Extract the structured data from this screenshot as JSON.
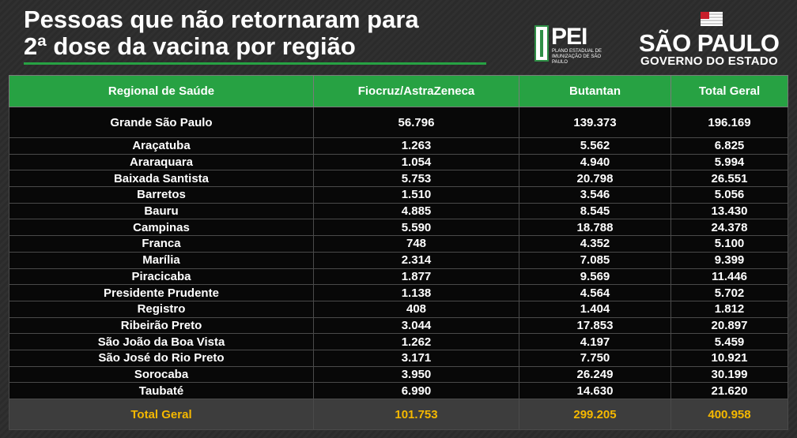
{
  "title": {
    "line1": "Pessoas que não retornaram para",
    "line2": "2ª dose da vacina por região"
  },
  "logos": {
    "pei": {
      "name": "PEI",
      "subtitle": "PLANO ESTADUAL DE IMUNIZAÇÃO DE SÃO PAULO"
    },
    "sp": {
      "name": "SÃO PAULO",
      "subtitle": "GOVERNO DO ESTADO"
    }
  },
  "table": {
    "headers": [
      "Regional de Saúde",
      "Fiocruz/AstraZeneca",
      "Butantan",
      "Total Geral"
    ],
    "highlight_row": [
      "Grande São Paulo",
      "56.796",
      "139.373",
      "196.169"
    ],
    "rows": [
      [
        "Araçatuba",
        "1.263",
        "5.562",
        "6.825"
      ],
      [
        "Araraquara",
        "1.054",
        "4.940",
        "5.994"
      ],
      [
        "Baixada Santista",
        "5.753",
        "20.798",
        "26.551"
      ],
      [
        "Barretos",
        "1.510",
        "3.546",
        "5.056"
      ],
      [
        "Bauru",
        "4.885",
        "8.545",
        "13.430"
      ],
      [
        "Campinas",
        "5.590",
        "18.788",
        "24.378"
      ],
      [
        "Franca",
        "748",
        "4.352",
        "5.100"
      ],
      [
        "Marília",
        "2.314",
        "7.085",
        "9.399"
      ],
      [
        "Piracicaba",
        "1.877",
        "9.569",
        "11.446"
      ],
      [
        "Presidente Prudente",
        "1.138",
        "4.564",
        "5.702"
      ],
      [
        "Registro",
        "408",
        "1.404",
        "1.812"
      ],
      [
        "Ribeirão Preto",
        "3.044",
        "17.853",
        "20.897"
      ],
      [
        "São João da Boa Vista",
        "1.262",
        "4.197",
        "5.459"
      ],
      [
        "São José do Rio Preto",
        "3.171",
        "7.750",
        "10.921"
      ],
      [
        "Sorocaba",
        "3.950",
        "26.249",
        "30.199"
      ],
      [
        "Taubaté",
        "6.990",
        "14.630",
        "21.620"
      ]
    ],
    "total_row": [
      "Total Geral",
      "101.753",
      "299.205",
      "400.958"
    ]
  },
  "colors": {
    "header_green": "#27a243",
    "total_text": "#f5b800",
    "row_background": "#080808"
  }
}
